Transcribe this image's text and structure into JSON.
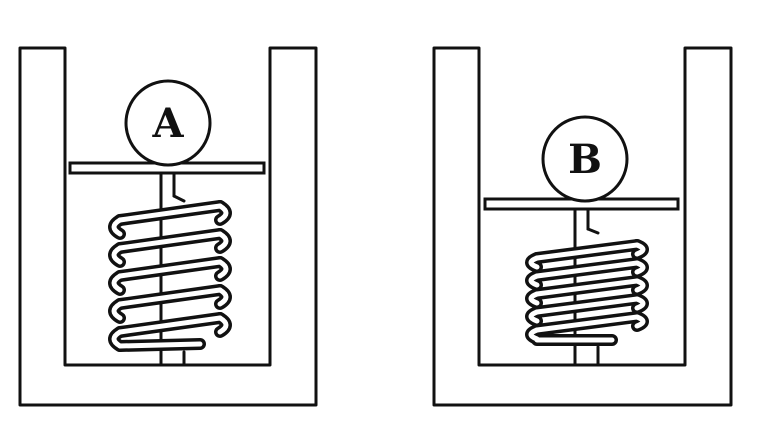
{
  "figures": [
    {
      "id": "a",
      "ball_label": "A"
    },
    {
      "id": "b",
      "ball_label": "B"
    }
  ]
}
